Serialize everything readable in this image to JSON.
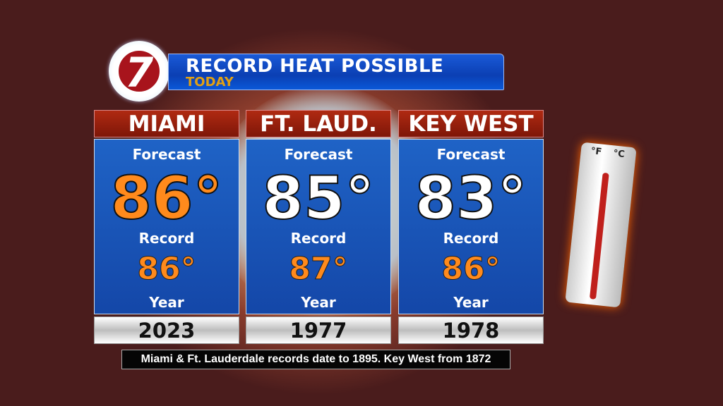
{
  "header": {
    "logo_text": "7",
    "title": "RECORD HEAT POSSIBLE",
    "subtitle": "TODAY"
  },
  "labels": {
    "forecast": "Forecast",
    "record": "Record",
    "year": "Year"
  },
  "cities": [
    {
      "name": "MIAMI",
      "forecast": "86°",
      "record": "86°",
      "year": "2023",
      "forecast_color": "#ff8a1c"
    },
    {
      "name": "FT. LAUD.",
      "forecast": "85°",
      "record": "87°",
      "year": "1977",
      "forecast_color": "#ffffff"
    },
    {
      "name": "KEY WEST",
      "forecast": "83°",
      "record": "86°",
      "year": "1978",
      "forecast_color": "#ffffff"
    }
  ],
  "footnote": "Miami & Ft. Lauderdale records date to 1895. Key West from 1872",
  "thermometer": {
    "unit_f": "°F",
    "unit_c": "°C"
  }
}
